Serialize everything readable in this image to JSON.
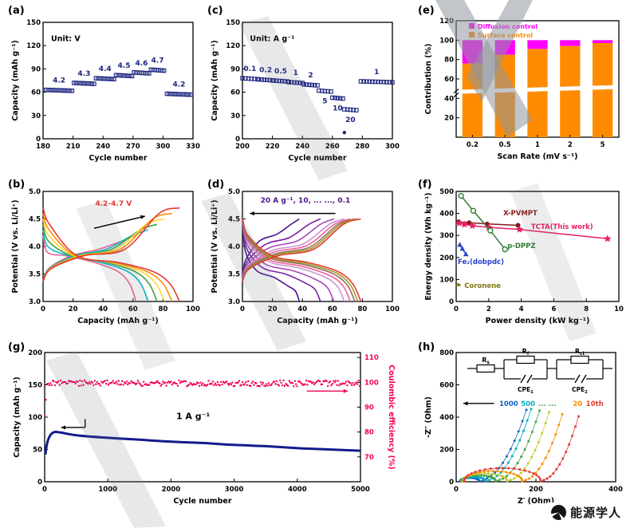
{
  "figure": {
    "logo_text": "能源学人",
    "panels": {
      "a": {
        "label": "(a)"
      },
      "b": {
        "label": "(b)"
      },
      "c": {
        "label": "(c)"
      },
      "d": {
        "label": "(d)"
      },
      "e": {
        "label": "(e)"
      },
      "f": {
        "label": "(f)"
      },
      "g": {
        "label": "(g)"
      },
      "h": {
        "label": "(h)"
      }
    }
  },
  "chart_data": [
    {
      "panel": "a",
      "type": "scatter",
      "xlabel": "Cycle number",
      "ylabel": "Capacity (mAh g⁻¹)",
      "xlim": [
        180,
        330
      ],
      "ylim": [
        0,
        150
      ],
      "xticks": [
        180,
        210,
        240,
        270,
        300,
        330
      ],
      "yticks": [
        0,
        30,
        60,
        90,
        120,
        150
      ],
      "annotation": "Unit: V",
      "annotation_xy": [
        188,
        126
      ],
      "marker": {
        "shape": "square-open",
        "color": "#1a237e"
      },
      "segments": [
        {
          "label": "4.2",
          "x0": 183,
          "x1": 209,
          "y": 63,
          "label_side": "above"
        },
        {
          "label": "4.3",
          "x0": 211,
          "x1": 231,
          "y": 72,
          "label_side": "above"
        },
        {
          "label": "4.4",
          "x0": 233,
          "x1": 251,
          "y": 78,
          "label_side": "above"
        },
        {
          "label": "4.5",
          "x0": 253,
          "x1": 269,
          "y": 82,
          "label_side": "above"
        },
        {
          "label": "4.6",
          "x0": 271,
          "x1": 286,
          "y": 85.5,
          "label_side": "above"
        },
        {
          "label": "4.7",
          "x0": 288,
          "x1": 301,
          "y": 89,
          "label_side": "above"
        },
        {
          "label": "4.2",
          "x0": 304,
          "x1": 328,
          "y": 58,
          "label_side": "above"
        }
      ]
    },
    {
      "panel": "c",
      "type": "scatter",
      "xlabel": "Cycle number",
      "ylabel": "Capacity (mAh g⁻¹)",
      "xlim": [
        200,
        300
      ],
      "ylim": [
        0,
        150
      ],
      "xticks": [
        200,
        220,
        240,
        260,
        280,
        300
      ],
      "yticks": [
        0,
        30,
        60,
        90,
        120,
        150
      ],
      "annotation": "Unit: A g⁻¹",
      "annotation_xy": [
        205,
        126
      ],
      "marker": {
        "shape": "square-open",
        "color": "#1a237e"
      },
      "outlier": {
        "x": 268,
        "y": 8
      },
      "segments": [
        {
          "label": "0.1",
          "x0": 200,
          "x1": 210,
          "y": 78,
          "label_side": "above"
        },
        {
          "label": "0.2",
          "x0": 211,
          "x1": 220,
          "y": 76.5,
          "label_side": "above"
        },
        {
          "label": "0.5",
          "x0": 221,
          "x1": 230,
          "y": 75,
          "label_side": "above"
        },
        {
          "label": "1",
          "x0": 231,
          "x1": 240,
          "y": 73,
          "label_side": "above"
        },
        {
          "label": "2",
          "x0": 241,
          "x1": 250,
          "y": 70,
          "label_side": "above"
        },
        {
          "label": "5",
          "x0": 251,
          "x1": 259,
          "y": 62,
          "label_side": "below"
        },
        {
          "label": "10",
          "x0": 260,
          "x1": 267,
          "y": 53,
          "label_side": "below"
        },
        {
          "label": "20",
          "x0": 268,
          "x1": 276,
          "y": 38,
          "label_side": "below"
        },
        {
          "label": "1",
          "x0": 279,
          "x1": 300,
          "y": 74,
          "label_side": "above"
        }
      ]
    },
    {
      "panel": "b",
      "type": "curves",
      "xlabel": "Capacity (mAh g⁻¹)",
      "ylabel": "Potential (V vs. Li/Li⁺)",
      "xlim": [
        0,
        100
      ],
      "ylim": [
        3,
        5
      ],
      "xticks": [
        0,
        20,
        40,
        60,
        80,
        100
      ],
      "yticks": [
        3,
        3.5,
        4,
        4.5,
        5
      ],
      "ytick_labels": [
        "3.0",
        "3.5",
        "4.0",
        "4.5",
        "5.0"
      ],
      "annotation": "4.2-4.7 V",
      "annotation_color": "#e53935",
      "annotation_xy": [
        47,
        4.74
      ],
      "arrow": [
        [
          34,
          4.33
        ],
        [
          68,
          4.55
        ]
      ],
      "curves": [
        {
          "name": "4.2 V",
          "vmax": 4.2,
          "capacity": 62,
          "pol": 0.03,
          "color": "#f06292"
        },
        {
          "name": "4.3 V",
          "vmax": 4.3,
          "capacity": 70,
          "pol": 0.03,
          "color": "#00bcd4"
        },
        {
          "name": "4.4 V",
          "vmax": 4.4,
          "capacity": 76,
          "pol": 0.03,
          "color": "#43a047"
        },
        {
          "name": "4.5 V",
          "vmax": 4.5,
          "capacity": 81,
          "pol": 0.03,
          "color": "#fdd835"
        },
        {
          "name": "4.6 V",
          "vmax": 4.6,
          "capacity": 86,
          "pol": 0.03,
          "color": "#fb8c00"
        },
        {
          "name": "4.7 V",
          "vmax": 4.7,
          "capacity": 91,
          "pol": 0.03,
          "color": "#e53935"
        }
      ]
    },
    {
      "panel": "d",
      "type": "curves",
      "xlabel": "Capacity (mAh g⁻¹)",
      "ylabel": "Potential (V vs. Li/Li⁺)",
      "xlim": [
        0,
        100
      ],
      "ylim": [
        3,
        5
      ],
      "xticks": [
        0,
        20,
        40,
        60,
        80,
        100
      ],
      "yticks": [
        3,
        3.5,
        4,
        4.5,
        5
      ],
      "ytick_labels": [
        "3.0",
        "3.5",
        "4.0",
        "4.5",
        "5.0"
      ],
      "annotation": "20 A g⁻¹, 10, ... ..., 0.1",
      "annotation_color": "#4a148c",
      "annotation_xy": [
        42,
        4.8
      ],
      "arrow": [
        [
          62,
          4.6
        ],
        [
          5,
          4.6
        ]
      ],
      "curves": [
        {
          "name": "20",
          "vmax": 4.5,
          "capacity": 38,
          "pol": 0.3,
          "color": "#4a148c"
        },
        {
          "name": "10",
          "vmax": 4.5,
          "capacity": 52,
          "pol": 0.24,
          "color": "#7b1fa2"
        },
        {
          "name": "5",
          "vmax": 4.5,
          "capacity": 61,
          "pol": 0.18,
          "color": "#ab47bc"
        },
        {
          "name": "2",
          "vmax": 4.5,
          "capacity": 68,
          "pol": 0.13,
          "color": "#ce93d8"
        },
        {
          "name": "1",
          "vmax": 4.5,
          "capacity": 72,
          "pol": 0.1,
          "color": "#f06292"
        },
        {
          "name": "0.5",
          "vmax": 4.5,
          "capacity": 75,
          "pol": 0.07,
          "color": "#8d6e63"
        },
        {
          "name": "0.2",
          "vmax": 4.5,
          "capacity": 77,
          "pol": 0.05,
          "color": "#9e9d24"
        },
        {
          "name": "0.1",
          "vmax": 4.5,
          "capacity": 79,
          "pol": 0.03,
          "color": "#e53935"
        }
      ]
    },
    {
      "panel": "e",
      "type": "stacked-bar",
      "xlabel": "Scan Rate (mV s⁻¹)",
      "ylabel": "Contribution (%)",
      "categories": [
        "0.2",
        "0.5",
        "1",
        "2",
        "5"
      ],
      "series": [
        {
          "name": "Surface control",
          "color": "#ff8c00",
          "values": [
            76,
            85,
            91,
            94,
            97
          ]
        },
        {
          "name": "Diffusion control",
          "color": "#ff00ff",
          "values": [
            24,
            15,
            9,
            6,
            3
          ]
        }
      ],
      "legend_order": [
        "Diffusion control",
        "Surface control"
      ],
      "ylim": [
        0,
        120
      ],
      "yticks": [
        20,
        40,
        60,
        80,
        100,
        120
      ],
      "axis_break": true,
      "break_y": 48
    },
    {
      "panel": "f",
      "type": "ragone",
      "xlabel": "Power density (kW kg⁻¹)",
      "ylabel": "Energy density (Wh kg⁻¹)",
      "xlim": [
        0,
        10
      ],
      "ylim": [
        0,
        500
      ],
      "xticks": [
        0,
        2,
        4,
        6,
        8,
        10
      ],
      "yticks": [
        0,
        100,
        200,
        300,
        400,
        500
      ],
      "series": [
        {
          "name": "X-PVMPT",
          "color": "#8b1a1a",
          "marker": "circle",
          "line": true,
          "points": [
            [
              0.15,
              362
            ],
            [
              0.8,
              358
            ],
            [
              1.9,
              352
            ],
            [
              3.8,
              346
            ]
          ],
          "label_xy": [
            2.9,
            392
          ]
        },
        {
          "name": "TCTA(This work)",
          "color": "#e91e63",
          "marker": "star",
          "line": true,
          "points": [
            [
              0.2,
              356
            ],
            [
              0.5,
              350
            ],
            [
              1.0,
              344
            ],
            [
              2.0,
              337
            ],
            [
              3.9,
              327
            ],
            [
              9.3,
              285
            ]
          ],
          "label_xy": [
            4.6,
            330
          ]
        },
        {
          "name": "p-DPPZ",
          "color": "#2e7d32",
          "marker": "circle-open",
          "line": true,
          "points": [
            [
              0.3,
              480
            ],
            [
              1.05,
              412
            ],
            [
              2.1,
              322
            ],
            [
              3.0,
              237
            ]
          ],
          "label_xy": [
            3.15,
            243
          ]
        },
        {
          "name": "Fe₂(dobpdc)",
          "color": "#2741c9",
          "marker": "triangle",
          "line": true,
          "points": [
            [
              0.22,
              258
            ],
            [
              0.38,
              240
            ],
            [
              0.6,
              215
            ]
          ],
          "label_xy": [
            0.1,
            170
          ]
        },
        {
          "name": "Coronene",
          "color": "#827717",
          "marker": "half-circle",
          "line": false,
          "points": [
            [
              0.12,
              70
            ]
          ],
          "label_xy": [
            0.5,
            62
          ]
        }
      ]
    },
    {
      "panel": "g",
      "type": "cycling",
      "xlabel": "Cycle number",
      "ylabel_left": "Capacity (mAh g⁻¹)",
      "ylabel_right": "Coulombic efficiency (%)",
      "xlim": [
        0,
        5000
      ],
      "xticks": [
        0,
        1000,
        2000,
        3000,
        4000,
        5000
      ],
      "ylim_left": [
        0,
        200
      ],
      "yticks_left": [
        0,
        50,
        100,
        150,
        200
      ],
      "ylim_right": [
        60,
        112
      ],
      "yticks_right": [
        70,
        80,
        90,
        100,
        110
      ],
      "annotation": "1 A g⁻¹",
      "annotation_xy": [
        2350,
        97
      ],
      "capacity_color": "#141b8c",
      "ce_color": "#f50057",
      "ce_start": 86,
      "ce_level": 100,
      "capacity_points": [
        [
          10,
          42
        ],
        [
          40,
          60
        ],
        [
          90,
          72
        ],
        [
          160,
          77
        ],
        [
          260,
          76
        ],
        [
          500,
          72
        ],
        [
          1000,
          68
        ],
        [
          1500,
          65
        ],
        [
          2000,
          62
        ],
        [
          2500,
          60
        ],
        [
          3000,
          57
        ],
        [
          3500,
          55
        ],
        [
          4000,
          52
        ],
        [
          4500,
          50
        ],
        [
          5000,
          48
        ]
      ]
    },
    {
      "panel": "h",
      "type": "nyquist",
      "xlabel": "Z′ (Ohm)",
      "ylabel": "-Z″ (Ohm)",
      "xlim": [
        0,
        400
      ],
      "ylim": [
        0,
        800
      ],
      "xticks": [
        0,
        200,
        400
      ],
      "yticks": [
        0,
        200,
        400,
        600,
        800
      ],
      "labels_y": 470,
      "cycle_labels": [
        {
          "text": "1000",
          "color": "#1565c0"
        },
        {
          "text": "500",
          "color": "#00acc1"
        },
        {
          "text": "... ...",
          "color": "#43a047"
        },
        {
          "text": "20",
          "color": "#fb8c00"
        },
        {
          "text": "10th",
          "color": "#e53935"
        }
      ],
      "curves": [
        {
          "name": "1000",
          "color": "#1565c0",
          "x0": 10,
          "d": 48,
          "tail_top": 445,
          "tail_dx": 118
        },
        {
          "name": "500",
          "color": "#00acc1",
          "x0": 12,
          "d": 62,
          "tail_top": 450,
          "tail_dx": 114
        },
        {
          "name": "100",
          "color": "#43a047",
          "x0": 14,
          "d": 85,
          "tail_top": 440,
          "tail_dx": 110
        },
        {
          "name": "50",
          "color": "#c0ca33",
          "x0": 16,
          "d": 112,
          "tail_top": 430,
          "tail_dx": 105
        },
        {
          "name": "20",
          "color": "#fb8c00",
          "x0": 18,
          "d": 148,
          "tail_top": 418,
          "tail_dx": 100
        },
        {
          "name": "10th",
          "color": "#e53935",
          "x0": 20,
          "d": 192,
          "tail_top": 405,
          "tail_dx": 95
        }
      ],
      "circuit": {
        "elements": [
          {
            "main": "R",
            "sub": "s"
          },
          {
            "main": "R",
            "sub": "f"
          },
          {
            "main": "R",
            "sub": "ct"
          },
          {
            "main": "CPE",
            "sub": "1"
          },
          {
            "main": "CPE",
            "sub": "2"
          }
        ]
      }
    }
  ]
}
